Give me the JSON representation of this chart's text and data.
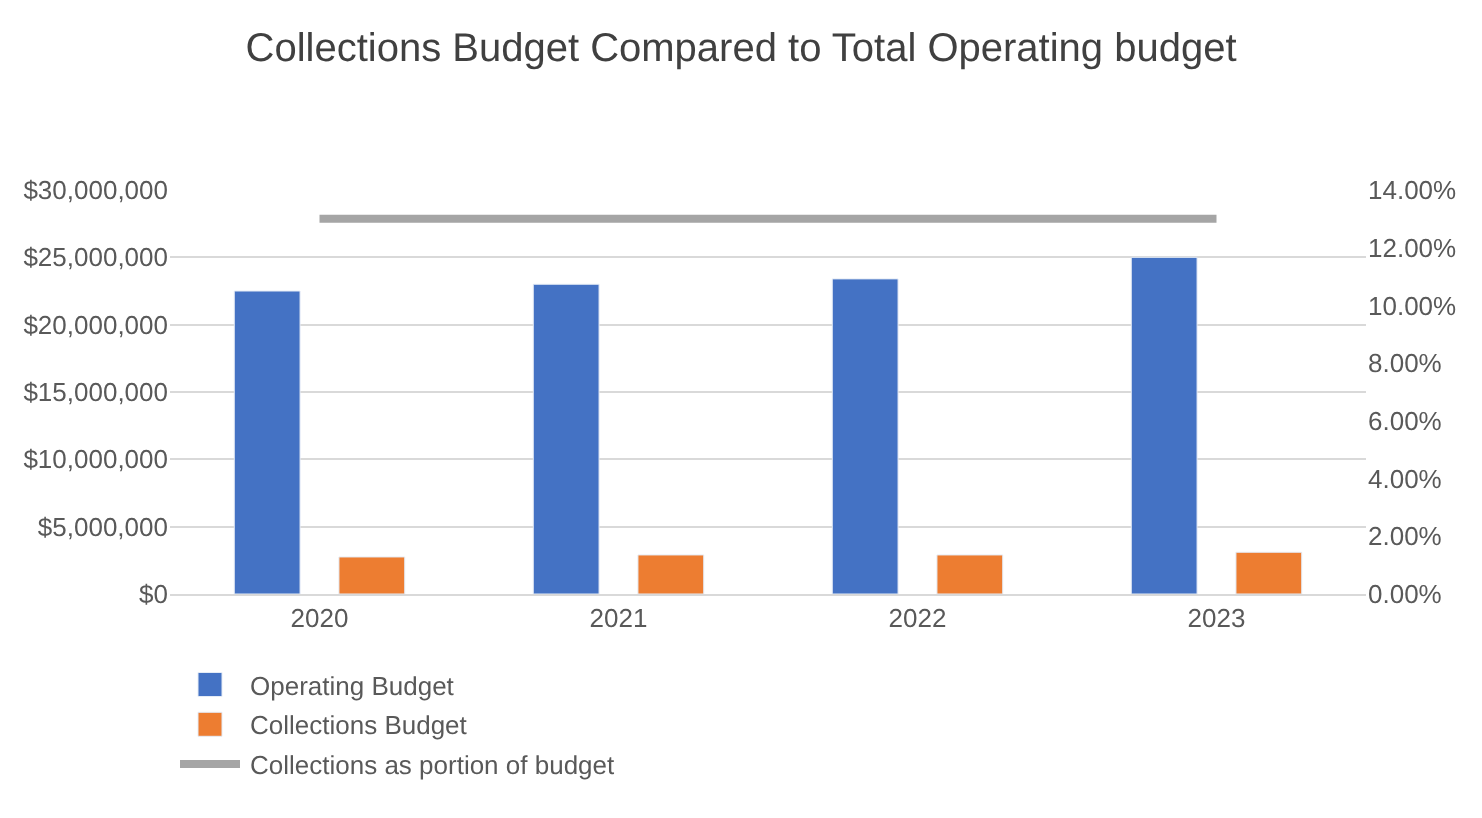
{
  "chart_data": {
    "type": "bar",
    "title": "Collections Budget Compared to Total Operating budget",
    "categories": [
      "2020",
      "2021",
      "2022",
      "2023"
    ],
    "series": [
      {
        "name": "Operating Budget",
        "color": "#4472c4",
        "values": [
          22500000,
          23000000,
          23400000,
          25000000
        ]
      },
      {
        "name": "Collections Budget",
        "color": "#ed7d31",
        "values": [
          2750000,
          2900000,
          2900000,
          3100000
        ]
      },
      {
        "name": "Collections as portion of budget",
        "color": "#a5a5a5",
        "type": "line",
        "axis": "y2",
        "values": [
          13.0,
          13.0,
          13.0,
          13.0
        ]
      }
    ],
    "ylim": [
      0,
      30000000
    ],
    "yticks": [
      {
        "value": 0,
        "label": "$0"
      },
      {
        "value": 5000000,
        "label": "$5,000,000"
      },
      {
        "value": 10000000,
        "label": "$10,000,000"
      },
      {
        "value": 15000000,
        "label": "$15,000,000"
      },
      {
        "value": 20000000,
        "label": "$20,000,000"
      },
      {
        "value": 25000000,
        "label": "$25,000,000"
      },
      {
        "value": 30000000,
        "label": "$30,000,000"
      }
    ],
    "y2lim": [
      0,
      14
    ],
    "y2ticks": [
      {
        "value": 0,
        "label": "0.00%"
      },
      {
        "value": 2,
        "label": "2.00%"
      },
      {
        "value": 4,
        "label": "4.00%"
      },
      {
        "value": 6,
        "label": "6.00%"
      },
      {
        "value": 8,
        "label": "8.00%"
      },
      {
        "value": 10,
        "label": "10.00%"
      },
      {
        "value": 12,
        "label": "12.00%"
      },
      {
        "value": 14,
        "label": "14.00%"
      }
    ],
    "grid": "y",
    "legend": "bottom"
  }
}
